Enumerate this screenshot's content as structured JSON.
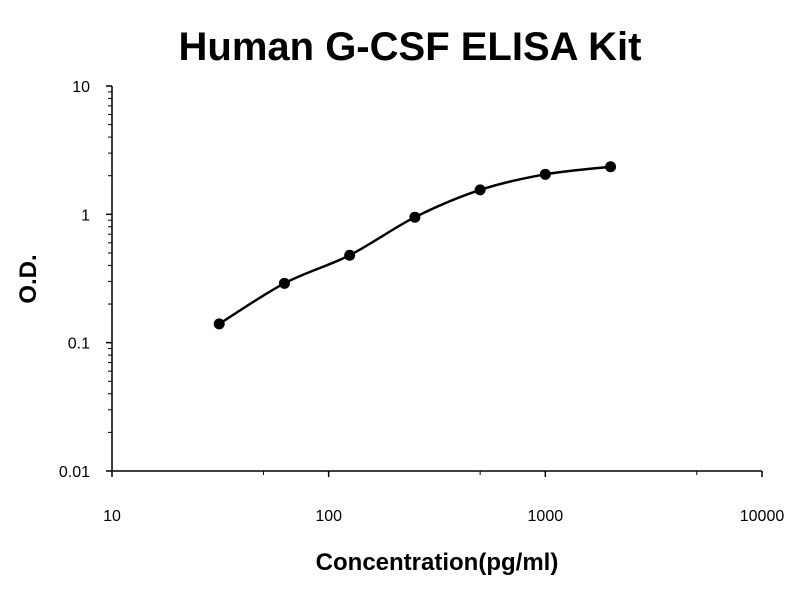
{
  "chart_data": {
    "type": "scatter",
    "title": "Human G-CSF ELISA Kit",
    "xlabel": "Concentration(pg/ml)",
    "ylabel": "O.D.",
    "x_scale": "log",
    "y_scale": "log",
    "xlim": [
      10,
      10000
    ],
    "ylim": [
      0.01,
      10
    ],
    "x_ticks": [
      10,
      100,
      1000,
      10000
    ],
    "x_tick_labels": [
      "10",
      "100",
      "1000",
      "10000"
    ],
    "y_ticks": [
      0.01,
      0.1,
      1,
      10
    ],
    "y_tick_labels": [
      "0.01",
      "0.1",
      "1",
      "10"
    ],
    "grid": false,
    "legend": "none",
    "series": [
      {
        "x": [
          31.25,
          62.5,
          125,
          250,
          500,
          1000,
          2000
        ],
        "y": [
          0.14,
          0.29,
          0.48,
          0.95,
          1.55,
          2.05,
          2.35
        ],
        "marker": "circle",
        "fit_line": true,
        "color": "#000000"
      }
    ]
  }
}
